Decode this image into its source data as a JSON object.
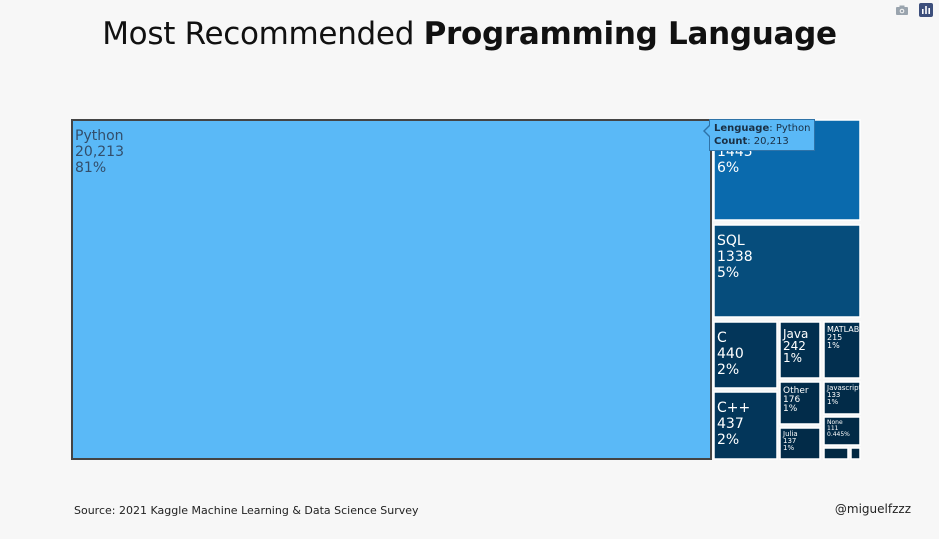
{
  "title": {
    "light": "Most Recommended ",
    "bold": "Programming Language"
  },
  "toolbar": {
    "icons": [
      "camera-icon",
      "plotly-logo-icon"
    ]
  },
  "chart_data": {
    "type": "treemap",
    "title": "Most Recommended Programming Language",
    "items": [
      {
        "label": "Python",
        "count_text": "20,213",
        "pct": "81%",
        "value": 20213,
        "color": "#5ab9f7",
        "text_color": "#334e6b"
      },
      {
        "label": "R",
        "count_text": "1445",
        "pct": "6%",
        "value": 1445,
        "color": "#0a6aad",
        "text_color": "#ffffff"
      },
      {
        "label": "SQL",
        "count_text": "1338",
        "pct": "5%",
        "value": 1338,
        "color": "#064d7c",
        "text_color": "#ffffff"
      },
      {
        "label": "C",
        "count_text": "440",
        "pct": "2%",
        "value": 440,
        "color": "#03365a",
        "text_color": "#ffffff"
      },
      {
        "label": "C++",
        "count_text": "437",
        "pct": "2%",
        "value": 437,
        "color": "#03365a",
        "text_color": "#ffffff"
      },
      {
        "label": "Java",
        "count_text": "242",
        "pct": "1%",
        "value": 242,
        "color": "#022f4f",
        "text_color": "#ffffff"
      },
      {
        "label": "MATLAB",
        "count_text": "215",
        "pct": "1%",
        "value": 215,
        "color": "#022f4f",
        "text_color": "#ffffff"
      },
      {
        "label": "Other",
        "count_text": "176",
        "pct": "1%",
        "value": 176,
        "color": "#022c4a",
        "text_color": "#ffffff"
      },
      {
        "label": "Julia",
        "count_text": "137",
        "pct": "1%",
        "value": 137,
        "color": "#022b48",
        "text_color": "#ffffff"
      },
      {
        "label": "Javascript",
        "count_text": "133",
        "pct": "1%",
        "value": 133,
        "color": "#022b48",
        "text_color": "#ffffff"
      },
      {
        "label": "None",
        "count_text": "111",
        "pct": "0.445%",
        "value": 111,
        "color": "#022a46",
        "text_color": "#ffffff"
      },
      {
        "label": "",
        "count_text": "",
        "pct": "",
        "value": 60,
        "color": "#022943",
        "text_color": "#ffffff"
      },
      {
        "label": "",
        "count_text": "",
        "pct": "",
        "value": 20,
        "color": "#022943",
        "text_color": "#ffffff"
      }
    ]
  },
  "tooltip": {
    "key1": "Lenguage",
    "val1": "Python",
    "key2": "Count",
    "val2": "20,213"
  },
  "footer": {
    "source": "Source: 2021 Kaggle Machine Learning & Data Science Survey",
    "handle": "@miguelfzzz"
  }
}
